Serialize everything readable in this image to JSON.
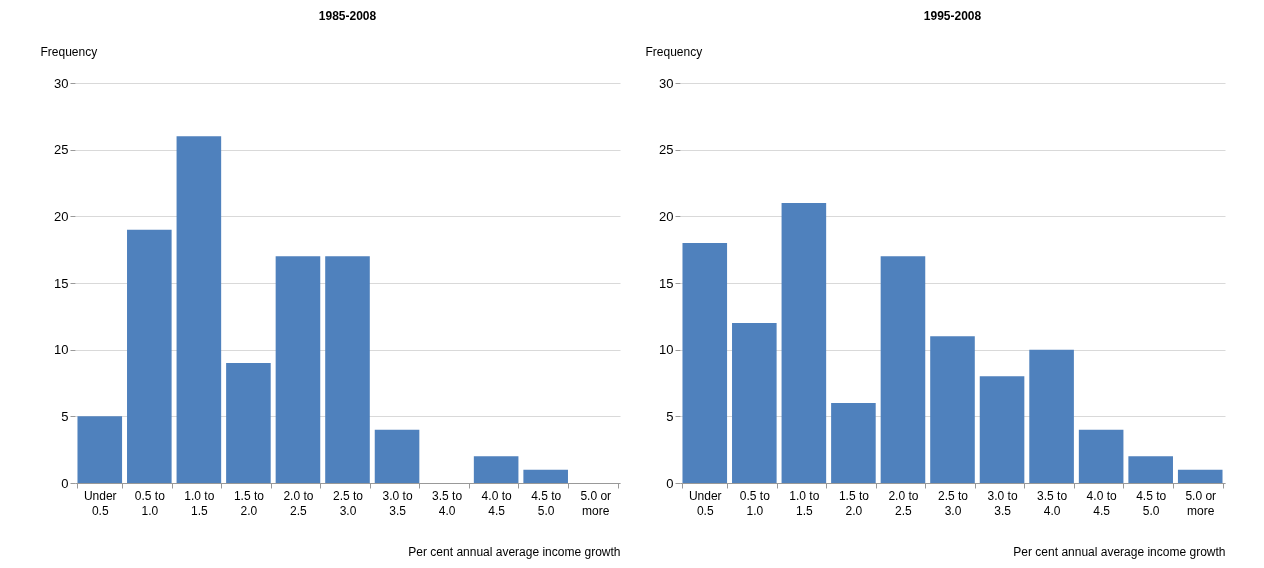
{
  "chart_data": [
    {
      "type": "bar",
      "title": "1985-2008",
      "xlabel": "Per cent annual average income growth",
      "ylabel": "Frequency",
      "categories": [
        "Under 0.5",
        "0.5 to 1.0",
        "1.0 to 1.5",
        "1.5 to 2.0",
        "2.0 to 2.5",
        "2.5 to 3.0",
        "3.0 to 3.5",
        "3.5 to 4.0",
        "4.0 to 4.5",
        "4.5 to 5.0",
        "5.0 or more"
      ],
      "values": [
        5,
        19,
        26,
        9,
        17,
        17,
        4,
        0,
        2,
        1,
        0
      ],
      "color": "#4f81bd",
      "ylim": [
        0,
        30
      ],
      "yticks": [
        0,
        5,
        10,
        15,
        20,
        25,
        30
      ],
      "grid": "y"
    },
    {
      "type": "bar",
      "title": "1995-2008",
      "xlabel": "Per cent annual average  income growth",
      "ylabel": "Frequency",
      "categories": [
        "Under 0.5",
        "0.5 to 1.0",
        "1.0 to 1.5",
        "1.5 to 2.0",
        "2.0 to 2.5",
        "2.5 to 3.0",
        "3.0 to 3.5",
        "3.5 to 4.0",
        "4.0 to 4.5",
        "4.5 to 5.0",
        "5.0 or more"
      ],
      "values": [
        18,
        12,
        21,
        6,
        17,
        11,
        8,
        10,
        4,
        2,
        1
      ],
      "color": "#4f81bd",
      "ylim": [
        0,
        30
      ],
      "yticks": [
        0,
        5,
        10,
        15,
        20,
        25,
        30
      ],
      "grid": "y"
    }
  ]
}
